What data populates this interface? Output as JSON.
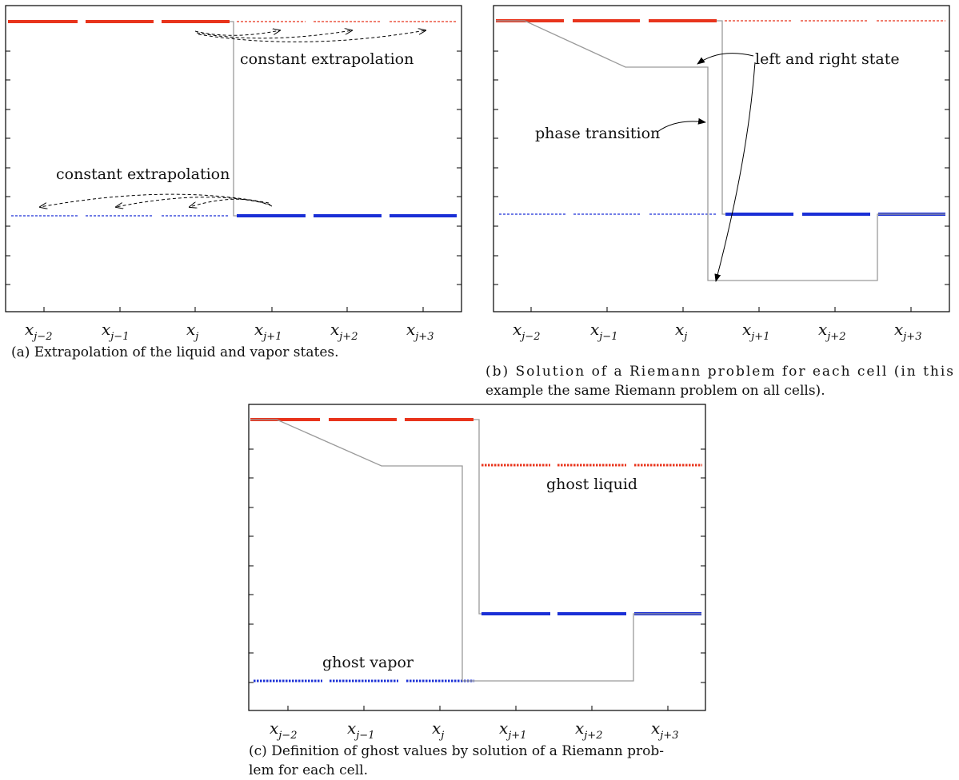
{
  "colors": {
    "liquid": "#e8341c",
    "vapor": "#1a2fd6",
    "path": "#9a9a9a"
  },
  "panels": [
    {
      "id": "a",
      "caption_lines": [
        "(a) Extrapolation of the liquid and vapor states."
      ],
      "annotations": [
        "constant extrapolation",
        "constant extrapolation"
      ]
    },
    {
      "id": "b",
      "caption_lines": [
        "(b) Solution of a Riemann problem for each cell (in this",
        "example the same Riemann problem on all cells)."
      ],
      "annotations": [
        "left and right state",
        "phase transition"
      ]
    },
    {
      "id": "c",
      "caption_lines": [
        "(c) Definition of ghost values by solution of a Riemann prob-",
        "lem for each cell."
      ],
      "annotations": [
        "ghost liquid",
        "ghost vapor"
      ]
    }
  ],
  "x_ticks": [
    {
      "base": "x",
      "sub": "j−2"
    },
    {
      "base": "x",
      "sub": "j−1"
    },
    {
      "base": "x",
      "sub": "j"
    },
    {
      "base": "x",
      "sub": "j+1"
    },
    {
      "base": "x",
      "sub": "j+2"
    },
    {
      "base": "x",
      "sub": "j+3"
    }
  ]
}
